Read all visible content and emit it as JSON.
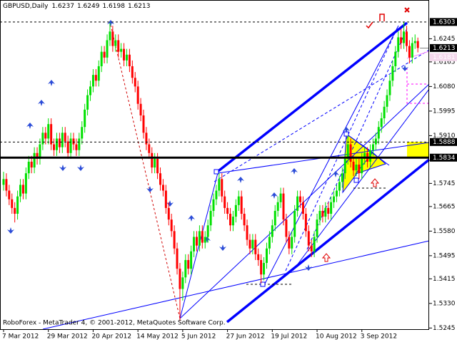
{
  "chart_data": {
    "type": "candlestick",
    "title": "GBPUSD,Daily",
    "footer": "RoboForex - MetaTrader 4, © 2001-2012, MetaQuotes Software Corp.",
    "up_color": "#00e000",
    "down_color": "#ff0000",
    "ylim": [
      1.5241,
      1.6379
    ],
    "yticks": [
      {
        "value": 1.6245,
        "label": "1.6245"
      },
      {
        "value": 1.6165,
        "label": "1.6165"
      },
      {
        "value": 1.608,
        "label": "1.6080"
      },
      {
        "value": 1.5995,
        "label": "1.5995"
      },
      {
        "value": 1.591,
        "label": "1.5910"
      },
      {
        "value": 1.5745,
        "label": "1.5745"
      },
      {
        "value": 1.5665,
        "label": "1.5665"
      },
      {
        "value": 1.558,
        "label": "1.5580"
      },
      {
        "value": 1.5495,
        "label": "1.5495"
      },
      {
        "value": 1.5415,
        "label": "1.5415"
      },
      {
        "value": 1.533,
        "label": "1.5330"
      },
      {
        "value": 1.5245,
        "label": "1.5245"
      }
    ],
    "levels": [
      {
        "value": 1.6303,
        "label": "1.6303",
        "line": "dashed",
        "tag_color": "#000000"
      },
      {
        "value": 1.6181,
        "label": "1.6181",
        "line": "none",
        "tag_color": "#f4d8ec"
      },
      {
        "value": 1.5888,
        "label": "1.5888",
        "line": "dashed",
        "tag_color": "#000000"
      },
      {
        "value": 1.5834,
        "label": "1.5834",
        "line": "solid",
        "tag_color": "#000000"
      }
    ],
    "categories": [
      "7 Mar 2012",
      null,
      null,
      null,
      null,
      null,
      null,
      null,
      null,
      null,
      null,
      null,
      null,
      null,
      null,
      null,
      "29 Mar 2012",
      null,
      null,
      null,
      null,
      null,
      null,
      null,
      null,
      null,
      null,
      null,
      null,
      null,
      null,
      null,
      "20 Apr 2012",
      null,
      null,
      null,
      null,
      null,
      null,
      null,
      null,
      null,
      null,
      null,
      null,
      null,
      null,
      null,
      "14 May 2012",
      null,
      null,
      null,
      null,
      null,
      null,
      null,
      null,
      null,
      null,
      null,
      null,
      null,
      null,
      null,
      "5 Jun 2012",
      null,
      null,
      null,
      null,
      null,
      null,
      null,
      null,
      null,
      null,
      null,
      null,
      null,
      null,
      null,
      "27 Jun 2012",
      null,
      null,
      null,
      null,
      null,
      null,
      null,
      null,
      null,
      null,
      null,
      null,
      null,
      null,
      null,
      "19 Jul 2012",
      null,
      null,
      null,
      null,
      null,
      null,
      null,
      null,
      null,
      null,
      null,
      null,
      null,
      null,
      null,
      "10 Aug 2012",
      null,
      null,
      null,
      null,
      null,
      null,
      null,
      null,
      null,
      null,
      null,
      null,
      null,
      null,
      null,
      "3 Sep 2012",
      null,
      null,
      null,
      null,
      null,
      null,
      null,
      null,
      null,
      null,
      null,
      null,
      null,
      null,
      null,
      null,
      null,
      null,
      null,
      null
    ],
    "ohlc": [
      [
        1.574,
        1.5785,
        1.572,
        1.576
      ],
      [
        1.576,
        1.578,
        1.57,
        1.572
      ],
      [
        1.572,
        1.574,
        1.567,
        1.569
      ],
      [
        1.569,
        1.571,
        1.564,
        1.566
      ],
      [
        1.566,
        1.568,
        1.561,
        1.564
      ],
      [
        1.564,
        1.572,
        1.562,
        1.57
      ],
      [
        1.57,
        1.576,
        1.568,
        1.574
      ],
      [
        1.574,
        1.576,
        1.569,
        1.571
      ],
      [
        1.571,
        1.58,
        1.569,
        1.578
      ],
      [
        1.578,
        1.584,
        1.576,
        1.582
      ],
      [
        1.582,
        1.584,
        1.578,
        1.58
      ],
      [
        1.58,
        1.587,
        1.578,
        1.585
      ],
      [
        1.585,
        1.587,
        1.581,
        1.583
      ],
      [
        1.583,
        1.59,
        1.581,
        1.588
      ],
      [
        1.588,
        1.594,
        1.586,
        1.592
      ],
      [
        1.592,
        1.594,
        1.588,
        1.59
      ],
      [
        1.59,
        1.597,
        1.588,
        1.595
      ],
      [
        1.595,
        1.597,
        1.586,
        1.588
      ],
      [
        1.588,
        1.59,
        1.584,
        1.586
      ],
      [
        1.586,
        1.592,
        1.584,
        1.59
      ],
      [
        1.59,
        1.592,
        1.585,
        1.587
      ],
      [
        1.587,
        1.594,
        1.585,
        1.592
      ],
      [
        1.592,
        1.594,
        1.587,
        1.589
      ],
      [
        1.589,
        1.591,
        1.583,
        1.585
      ],
      [
        1.585,
        1.592,
        1.583,
        1.59
      ],
      [
        1.59,
        1.592,
        1.586,
        1.588
      ],
      [
        1.588,
        1.59,
        1.584,
        1.586
      ],
      [
        1.586,
        1.592,
        1.584,
        1.59
      ],
      [
        1.59,
        1.596,
        1.588,
        1.594
      ],
      [
        1.594,
        1.602,
        1.592,
        1.6
      ],
      [
        1.6,
        1.607,
        1.598,
        1.605
      ],
      [
        1.605,
        1.61,
        1.603,
        1.608
      ],
      [
        1.608,
        1.614,
        1.606,
        1.612
      ],
      [
        1.612,
        1.614,
        1.608,
        1.61
      ],
      [
        1.61,
        1.617,
        1.608,
        1.615
      ],
      [
        1.615,
        1.622,
        1.613,
        1.62
      ],
      [
        1.62,
        1.622,
        1.616,
        1.618
      ],
      [
        1.618,
        1.626,
        1.616,
        1.624
      ],
      [
        1.624,
        1.63,
        1.622,
        1.627
      ],
      [
        1.627,
        1.629,
        1.62,
        1.622
      ],
      [
        1.622,
        1.626,
        1.62,
        1.624
      ],
      [
        1.624,
        1.626,
        1.618,
        1.62
      ],
      [
        1.62,
        1.623,
        1.618,
        1.621
      ],
      [
        1.621,
        1.623,
        1.615,
        1.617
      ],
      [
        1.617,
        1.621,
        1.615,
        1.619
      ],
      [
        1.619,
        1.621,
        1.613,
        1.615
      ],
      [
        1.615,
        1.617,
        1.609,
        1.611
      ],
      [
        1.611,
        1.613,
        1.606,
        1.608
      ],
      [
        1.608,
        1.61,
        1.6,
        1.602
      ],
      [
        1.602,
        1.604,
        1.596,
        1.598
      ],
      [
        1.598,
        1.6,
        1.59,
        1.592
      ],
      [
        1.592,
        1.594,
        1.586,
        1.588
      ],
      [
        1.588,
        1.59,
        1.583,
        1.585
      ],
      [
        1.585,
        1.587,
        1.578,
        1.58
      ],
      [
        1.58,
        1.585,
        1.578,
        1.583
      ],
      [
        1.583,
        1.585,
        1.576,
        1.578
      ],
      [
        1.578,
        1.58,
        1.572,
        1.574
      ],
      [
        1.574,
        1.576,
        1.57,
        1.572
      ],
      [
        1.572,
        1.574,
        1.564,
        1.566
      ],
      [
        1.566,
        1.568,
        1.56,
        1.562
      ],
      [
        1.562,
        1.564,
        1.556,
        1.558
      ],
      [
        1.558,
        1.56,
        1.55,
        1.552
      ],
      [
        1.552,
        1.554,
        1.543,
        1.545
      ],
      [
        1.545,
        1.547,
        1.527,
        1.538
      ],
      [
        1.538,
        1.544,
        1.534,
        1.542
      ],
      [
        1.542,
        1.55,
        1.54,
        1.548
      ],
      [
        1.548,
        1.55,
        1.543,
        1.545
      ],
      [
        1.545,
        1.553,
        1.543,
        1.551
      ],
      [
        1.551,
        1.558,
        1.549,
        1.556
      ],
      [
        1.556,
        1.558,
        1.551,
        1.553
      ],
      [
        1.553,
        1.56,
        1.551,
        1.558
      ],
      [
        1.558,
        1.56,
        1.552,
        1.554
      ],
      [
        1.554,
        1.558,
        1.552,
        1.556
      ],
      [
        1.556,
        1.562,
        1.554,
        1.56
      ],
      [
        1.56,
        1.567,
        1.558,
        1.565
      ],
      [
        1.565,
        1.571,
        1.563,
        1.569
      ],
      [
        1.569,
        1.574,
        1.567,
        1.572
      ],
      [
        1.572,
        1.578,
        1.57,
        1.576
      ],
      [
        1.576,
        1.578,
        1.568,
        1.57
      ],
      [
        1.57,
        1.572,
        1.564,
        1.566
      ],
      [
        1.566,
        1.568,
        1.562,
        1.564
      ],
      [
        1.564,
        1.566,
        1.558,
        1.56
      ],
      [
        1.56,
        1.565,
        1.558,
        1.563
      ],
      [
        1.563,
        1.569,
        1.561,
        1.567
      ],
      [
        1.567,
        1.572,
        1.565,
        1.57
      ],
      [
        1.57,
        1.572,
        1.562,
        1.564
      ],
      [
        1.564,
        1.566,
        1.558,
        1.56
      ],
      [
        1.56,
        1.562,
        1.553,
        1.555
      ],
      [
        1.555,
        1.557,
        1.55,
        1.552
      ],
      [
        1.552,
        1.557,
        1.55,
        1.555
      ],
      [
        1.555,
        1.557,
        1.548,
        1.55
      ],
      [
        1.55,
        1.552,
        1.546,
        1.548
      ],
      [
        1.548,
        1.55,
        1.54,
        1.543
      ],
      [
        1.543,
        1.549,
        1.541,
        1.547
      ],
      [
        1.547,
        1.554,
        1.545,
        1.552
      ],
      [
        1.552,
        1.558,
        1.55,
        1.556
      ],
      [
        1.556,
        1.562,
        1.554,
        1.56
      ],
      [
        1.56,
        1.567,
        1.558,
        1.565
      ],
      [
        1.565,
        1.57,
        1.563,
        1.568
      ],
      [
        1.568,
        1.573,
        1.566,
        1.571
      ],
      [
        1.571,
        1.573,
        1.56,
        1.562
      ],
      [
        1.562,
        1.564,
        1.554,
        1.556
      ],
      [
        1.556,
        1.558,
        1.55,
        1.552
      ],
      [
        1.552,
        1.558,
        1.55,
        1.556
      ],
      [
        1.556,
        1.567,
        1.554,
        1.565
      ],
      [
        1.565,
        1.572,
        1.563,
        1.57
      ],
      [
        1.57,
        1.572,
        1.566,
        1.568
      ],
      [
        1.568,
        1.57,
        1.562,
        1.564
      ],
      [
        1.564,
        1.566,
        1.556,
        1.558
      ],
      [
        1.558,
        1.56,
        1.551,
        1.553
      ],
      [
        1.553,
        1.555,
        1.549,
        1.551
      ],
      [
        1.551,
        1.558,
        1.549,
        1.556
      ],
      [
        1.556,
        1.564,
        1.554,
        1.562
      ],
      [
        1.562,
        1.567,
        1.56,
        1.565
      ],
      [
        1.565,
        1.567,
        1.561,
        1.563
      ],
      [
        1.563,
        1.568,
        1.561,
        1.566
      ],
      [
        1.566,
        1.568,
        1.562,
        1.564
      ],
      [
        1.564,
        1.57,
        1.562,
        1.568
      ],
      [
        1.568,
        1.572,
        1.566,
        1.57
      ],
      [
        1.57,
        1.574,
        1.568,
        1.572
      ],
      [
        1.572,
        1.577,
        1.57,
        1.575
      ],
      [
        1.575,
        1.58,
        1.573,
        1.578
      ],
      [
        1.578,
        1.585,
        1.576,
        1.583
      ],
      [
        1.583,
        1.591,
        1.581,
        1.588
      ],
      [
        1.588,
        1.59,
        1.58,
        1.582
      ],
      [
        1.582,
        1.584,
        1.577,
        1.579
      ],
      [
        1.579,
        1.583,
        1.577,
        1.581
      ],
      [
        1.581,
        1.583,
        1.576,
        1.578
      ],
      [
        1.578,
        1.585,
        1.576,
        1.583
      ],
      [
        1.583,
        1.587,
        1.581,
        1.585
      ],
      [
        1.585,
        1.587,
        1.58,
        1.582
      ],
      [
        1.582,
        1.588,
        1.58,
        1.586
      ],
      [
        1.586,
        1.59,
        1.584,
        1.588
      ],
      [
        1.588,
        1.592,
        1.586,
        1.59
      ],
      [
        1.59,
        1.596,
        1.588,
        1.594
      ],
      [
        1.594,
        1.599,
        1.592,
        1.597
      ],
      [
        1.597,
        1.603,
        1.595,
        1.601
      ],
      [
        1.601,
        1.607,
        1.599,
        1.605
      ],
      [
        1.605,
        1.612,
        1.603,
        1.61
      ],
      [
        1.61,
        1.617,
        1.608,
        1.615
      ],
      [
        1.615,
        1.622,
        1.613,
        1.62
      ],
      [
        1.62,
        1.627,
        1.618,
        1.625
      ],
      [
        1.625,
        1.628,
        1.621,
        1.623
      ],
      [
        1.623,
        1.6303,
        1.621,
        1.627
      ],
      [
        1.627,
        1.629,
        1.62,
        1.622
      ],
      [
        1.622,
        1.624,
        1.616,
        1.618
      ],
      [
        1.618,
        1.625,
        1.616,
        1.623
      ],
      [
        1.623,
        1.626,
        1.621,
        1.6237
      ],
      [
        1.6237,
        1.6249,
        1.6198,
        1.6213
      ]
    ]
  }
}
